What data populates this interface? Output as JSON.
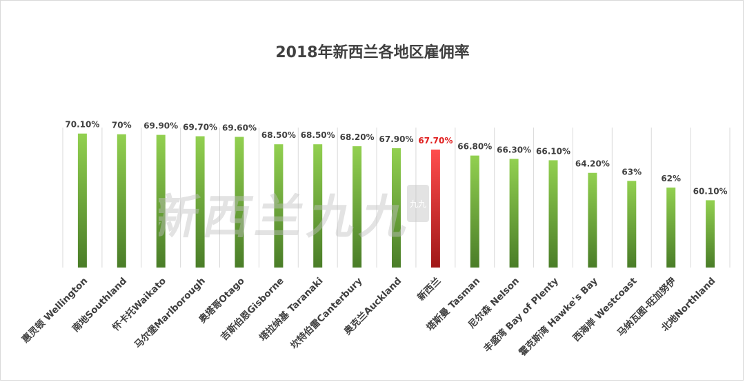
{
  "chart_data": {
    "type": "bar",
    "title": "2018年新西兰各地区雇佣率",
    "xlabel": "",
    "ylabel": "",
    "ylim": [
      50,
      71
    ],
    "grid": "vertical separators",
    "legend": "none",
    "categories": [
      "惠灵顿 Wellington",
      "南地Southland",
      "怀卡托Waikato",
      "马尔堡Marlborough",
      "奥塔哥Otago",
      "吉斯伯恩Gisborne",
      "塔拉纳基 Taranaki",
      "坎特伯雷Canterbury",
      "奥克兰Auckland",
      "新西兰",
      "塔斯曼 Tasman",
      "尼尔森 Nelson",
      "丰盛湾 Bay of Plenty",
      "霍克斯湾 Hawke's Bay",
      "西海岸 Westcoast",
      "马纳瓦图-旺加努伊",
      "北地Northland"
    ],
    "values": [
      70.1,
      70,
      69.9,
      69.7,
      69.6,
      68.5,
      68.5,
      68.2,
      67.9,
      67.7,
      66.8,
      66.3,
      66.1,
      64.2,
      63,
      62,
      60.1
    ],
    "labels": [
      "70.10%",
      "70%",
      "69.90%",
      "69.70%",
      "69.60%",
      "68.50%",
      "68.50%",
      "68.20%",
      "67.90%",
      "67.70%",
      "66.80%",
      "66.30%",
      "66.10%",
      "64.20%",
      "63%",
      "62%",
      "60.10%"
    ],
    "highlight_index": 9,
    "colors": {
      "bar_top": "#92d050",
      "bar_bottom": "#4a7d28",
      "highlight_top": "#ff4d4d",
      "highlight_bottom": "#a01818",
      "highlight_label": "#e02020",
      "grid": "#d9d9d9"
    }
  },
  "watermark": {
    "text": "新西兰九九",
    "seal": "九九"
  }
}
